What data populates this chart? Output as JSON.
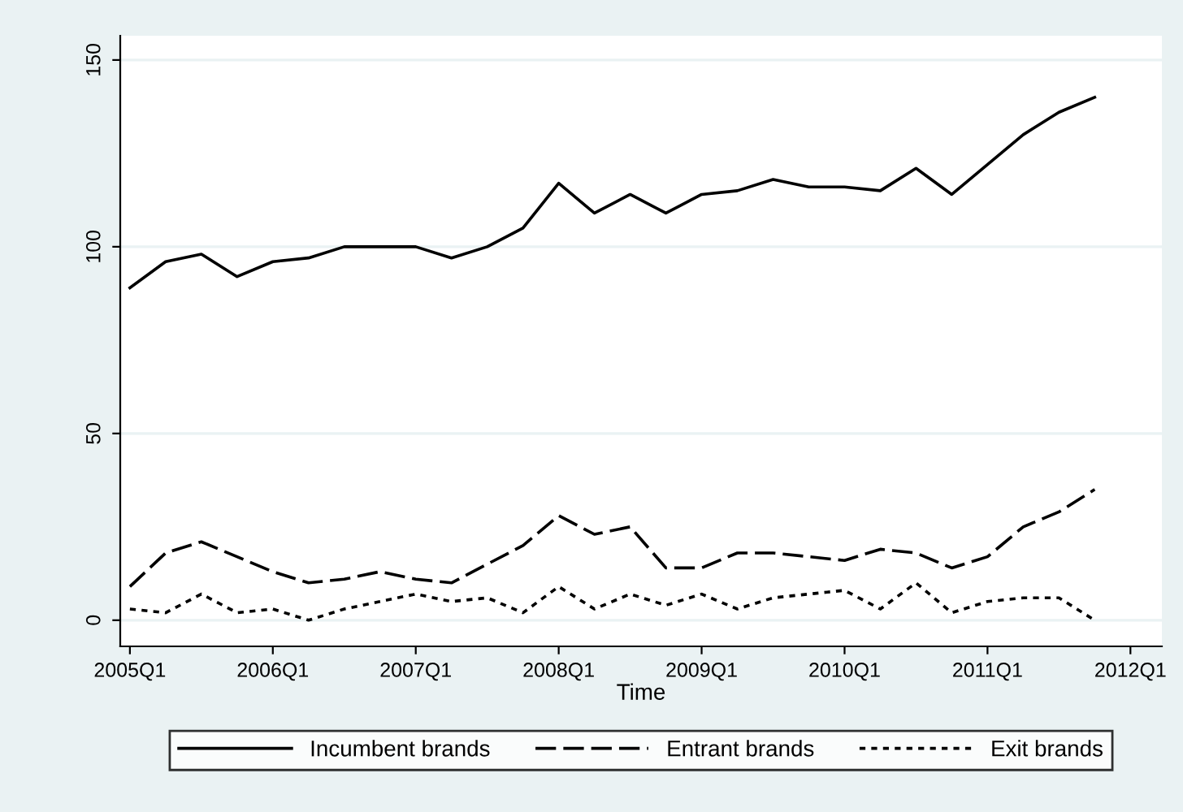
{
  "chart_data": {
    "type": "line",
    "xlabel": "Time",
    "categories": [
      "2005Q1",
      null,
      null,
      null,
      "2006Q1",
      null,
      null,
      null,
      "2007Q1",
      null,
      null,
      null,
      "2008Q1",
      null,
      null,
      null,
      "2009Q1",
      null,
      null,
      null,
      "2010Q1",
      null,
      null,
      null,
      "2011Q1",
      null,
      null,
      null,
      "2012Q1"
    ],
    "series": [
      {
        "name": "Incumbent brands",
        "color": "#000000",
        "line_style": "solid",
        "values": [
          89,
          96,
          98,
          92,
          96,
          97,
          100,
          100,
          100,
          97,
          100,
          105,
          117,
          109,
          114,
          109,
          114,
          115,
          118,
          116,
          116,
          115,
          121,
          114,
          122,
          130,
          136,
          140,
          null
        ]
      },
      {
        "name": "Entrant brands",
        "color": "#000000",
        "line_style": "dashed",
        "values": [
          9,
          18,
          21,
          17,
          13,
          10,
          11,
          13,
          11,
          10,
          15,
          20,
          28,
          23,
          25,
          14,
          14,
          18,
          18,
          17,
          16,
          19,
          18,
          14,
          17,
          25,
          29,
          35,
          null
        ]
      },
      {
        "name": "Exit brands",
        "color": "#000000",
        "line_style": "dotted",
        "values": [
          3,
          2,
          7,
          2,
          3,
          0,
          3,
          5,
          7,
          5,
          6,
          2,
          9,
          3,
          7,
          4,
          7,
          3,
          6,
          7,
          8,
          3,
          10,
          2,
          5,
          6,
          6,
          0,
          null
        ]
      }
    ],
    "ylim": [
      -7,
      156.5
    ],
    "yticks": [
      0,
      50,
      100,
      150
    ],
    "grid": "y",
    "legend": "bottom",
    "marker": "none"
  }
}
